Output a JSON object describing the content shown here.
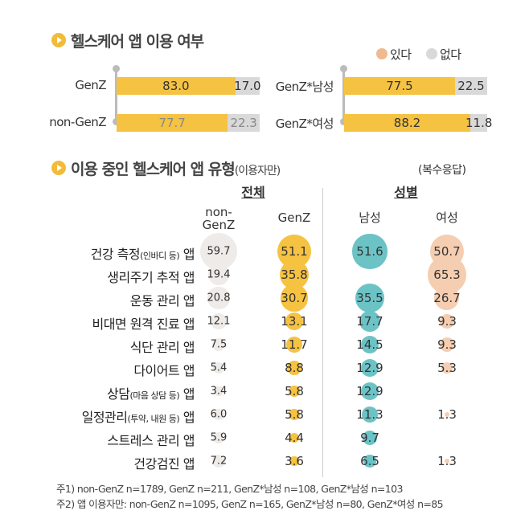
{
  "colors": {
    "yes": "#F5C242",
    "no": "#D9D9D9",
    "legend_yes": "#F0B990",
    "legend_no": "#D9D9D9",
    "nongenz": "#EEEBE8",
    "genz": "#F5C242",
    "male": "#6CC3C6",
    "female": "#F5CDB0"
  },
  "section1": {
    "title": "헬스케어 앱 이용 여부",
    "legend": [
      "있다",
      "없다"
    ]
  },
  "section2": {
    "title": "이용 중인 헬스케어 앱 유형",
    "title_suffix": "(이용자만)",
    "note": "(복수응답)",
    "group_total": "전체",
    "group_gender": "성별"
  },
  "chart_data": [
    {
      "type": "bar",
      "stacked": true,
      "orientation": "horizontal",
      "title": "헬스케어 앱 이용 여부",
      "categories": [
        "GenZ",
        "non-GenZ",
        "GenZ*남성",
        "GenZ*여성"
      ],
      "series": [
        {
          "name": "있다",
          "values": [
            83.0,
            77.7,
            77.5,
            88.2
          ]
        },
        {
          "name": "없다",
          "values": [
            17.0,
            22.3,
            22.5,
            11.8
          ]
        }
      ],
      "legend": "top-right"
    },
    {
      "type": "bubble",
      "title": "이용 중인 헬스케어 앱 유형",
      "columns": [
        "non-GenZ",
        "GenZ",
        "남성",
        "여성"
      ],
      "column_labels": [
        [
          "non-",
          "GenZ"
        ],
        [
          "GenZ"
        ],
        [
          "남성"
        ],
        [
          "여성"
        ]
      ],
      "rows": [
        {
          "label": "건강 측정",
          "sub": "(인바디 등)",
          "tail": " 앱",
          "values": [
            59.7,
            51.1,
            51.6,
            50.7
          ]
        },
        {
          "label": "생리주기 추적 앱",
          "sub": "",
          "tail": "",
          "values": [
            19.4,
            35.8,
            null,
            65.3
          ]
        },
        {
          "label": "운동 관리 앱",
          "sub": "",
          "tail": "",
          "values": [
            20.8,
            30.7,
            35.5,
            26.7
          ]
        },
        {
          "label": "비대면 원격 진료 앱",
          "sub": "",
          "tail": "",
          "values": [
            12.1,
            13.1,
            17.7,
            9.3
          ]
        },
        {
          "label": "식단 관리 앱",
          "sub": "",
          "tail": "",
          "values": [
            7.5,
            11.7,
            14.5,
            9.3
          ]
        },
        {
          "label": "다이어트 앱",
          "sub": "",
          "tail": "",
          "values": [
            5.4,
            8.8,
            12.9,
            5.3
          ]
        },
        {
          "label": "상담",
          "sub": "(마음 상담 등)",
          "tail": " 앱",
          "values": [
            3.4,
            5.8,
            12.9,
            null
          ]
        },
        {
          "label": "일정관리",
          "sub": "(투약, 내원 등)",
          "tail": " 앱",
          "values": [
            6.0,
            5.8,
            11.3,
            1.3
          ]
        },
        {
          "label": "스트레스 관리 앱",
          "sub": "",
          "tail": "",
          "values": [
            5.9,
            4.4,
            9.7,
            null
          ]
        },
        {
          "label": "건강검진 앱",
          "sub": "",
          "tail": "",
          "values": [
            7.2,
            3.6,
            6.5,
            1.3
          ]
        }
      ]
    }
  ],
  "notes": [
    "주1) non-GenZ n=1789, GenZ n=211, GenZ*남성 n=108, GenZ*남성 n=103",
    "주2) 앱 이용자만: non-GenZ n=1095, GenZ n=165, GenZ*남성 n=80, GenZ*여성 n=85"
  ]
}
